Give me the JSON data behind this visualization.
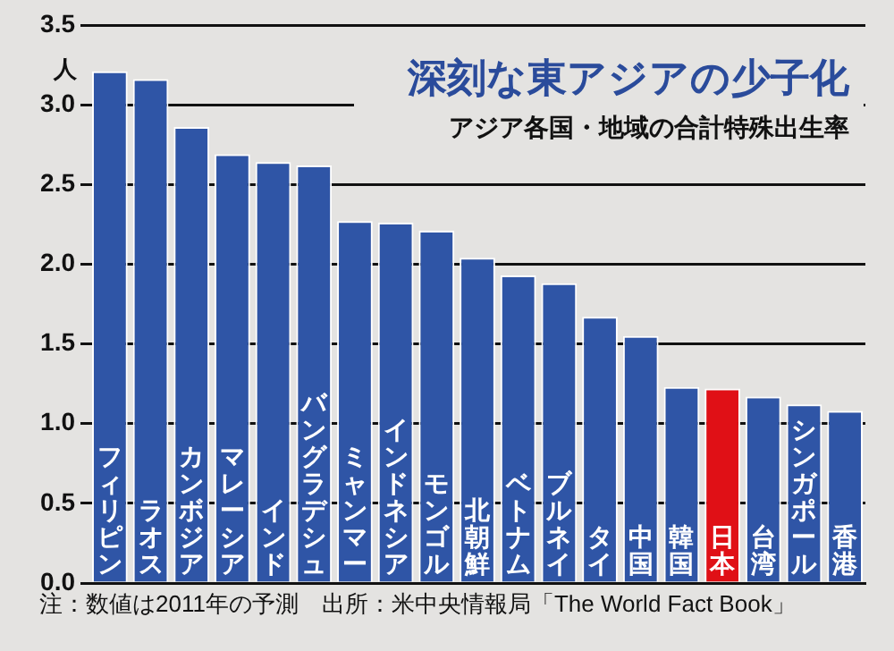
{
  "chart_data": {
    "type": "bar",
    "title": "深刻な東アジアの少子化",
    "subtitle": "アジア各国・地域の合計特殊出生率",
    "ylabel": "人",
    "categories": [
      "フィリピン",
      "ラオス",
      "カンボジア",
      "マレーシア",
      "インド",
      "バングラデシュ",
      "ミャンマー",
      "インドネシア",
      "モンゴル",
      "北朝鮮",
      "ベトナム",
      "ブルネイ",
      "タイ",
      "中国",
      "韓国",
      "日本",
      "台湾",
      "シンガポール",
      "香港"
    ],
    "values": [
      3.21,
      3.16,
      2.86,
      2.69,
      2.64,
      2.62,
      2.27,
      2.26,
      2.21,
      2.04,
      1.93,
      1.88,
      1.67,
      1.55,
      1.23,
      1.22,
      1.17,
      1.12,
      1.08
    ],
    "colors": [
      "#2f55a6",
      "#2f55a6",
      "#2f55a6",
      "#2f55a6",
      "#2f55a6",
      "#2f55a6",
      "#2f55a6",
      "#2f55a6",
      "#2f55a6",
      "#2f55a6",
      "#2f55a6",
      "#2f55a6",
      "#2f55a6",
      "#2f55a6",
      "#2f55a6",
      "#e01016",
      "#2f55a6",
      "#2f55a6",
      "#2f55a6"
    ],
    "ylim": [
      0,
      3.5
    ],
    "yticks": [
      {
        "value": 0,
        "label": "0.0"
      },
      {
        "value": 0.5,
        "label": "0.5"
      },
      {
        "value": 1,
        "label": "1.0"
      },
      {
        "value": 1.5,
        "label": "1.5"
      },
      {
        "value": 2,
        "label": "2.0"
      },
      {
        "value": 2.5,
        "label": "2.5"
      },
      {
        "value": 3,
        "label": "3.0"
      },
      {
        "value": 3.5,
        "label": "3.5"
      }
    ],
    "grid": "y",
    "legend": false,
    "annotations": [
      "注：数値は2011年の予測　出所：米中央情報局「The World Fact Book」"
    ]
  }
}
